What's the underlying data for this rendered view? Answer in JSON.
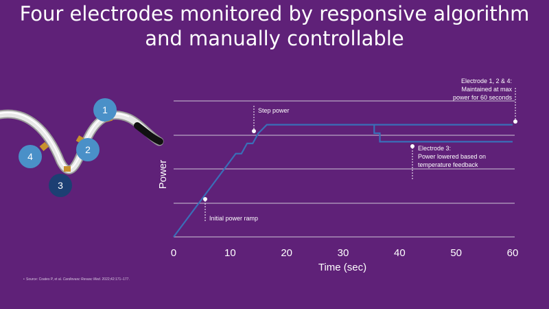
{
  "title_line1": "Four electrodes monitored by responsive algorithm",
  "title_line2": "and manually controllable",
  "electrodes": [
    {
      "label": "1",
      "color": "#4a90c8"
    },
    {
      "label": "2",
      "color": "#4a90c8"
    },
    {
      "label": "3",
      "color": "#1c3f73"
    },
    {
      "label": "4",
      "color": "#4a90c8"
    }
  ],
  "annotations": {
    "step_power": "Step power",
    "initial_ramp": "Initial power ramp",
    "electrode3_line1": "Electrode 3:",
    "electrode3_line2": "Power lowered based on",
    "electrode3_line3": "temperature feedback",
    "electrode124_line1": "Electrode 1, 2 & 4:",
    "electrode124_line2": "Maintained at max",
    "electrode124_line3": "power for 60 seconds"
  },
  "footnote": {
    "bullet": "•",
    "source": "Source: Coates P, et al. ",
    "journal": "Cardiovasc Revasc Med.",
    "ref": " 2022;42:171–177."
  },
  "colors": {
    "background": "#5f2178",
    "line": "#3a6fb8",
    "grid": "#b9a6c4"
  },
  "chart_data": {
    "type": "line",
    "xlabel": "Time (sec)",
    "ylabel": "Power",
    "xlim": [
      0,
      60
    ],
    "xticks": [
      0,
      10,
      20,
      30,
      40,
      50,
      60
    ],
    "ylim": [
      0,
      4
    ],
    "grid": true,
    "series": [
      {
        "values_x": [
          0,
          11,
          12,
          13,
          14,
          15,
          16.5,
          60
        ],
        "values_y": [
          0,
          2.45,
          2.45,
          2.75,
          2.75,
          3.05,
          3.3,
          3.3
        ]
      },
      {
        "values_x": [
          35.5,
          35.5,
          36.5,
          36.5,
          60
        ],
        "values_y": [
          3.3,
          3.05,
          3.05,
          2.8,
          2.8
        ]
      }
    ]
  }
}
